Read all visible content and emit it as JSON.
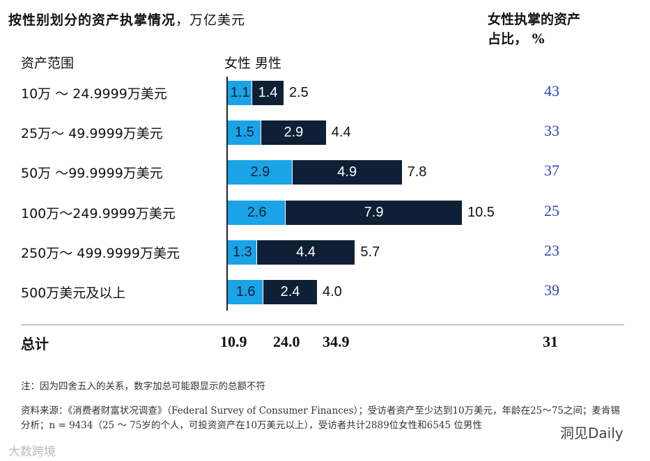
{
  "title": {
    "main": "按性别划分的资产执掌情况",
    "sub": "，万亿美元"
  },
  "share_header": {
    "line1": "女性执掌的资产",
    "line2": "占比， %"
  },
  "columns": {
    "range": "资产范围",
    "gender": "女性 男性"
  },
  "colors": {
    "female": "#1aa3e6",
    "male": "#0f1f36",
    "share": "#3045b8"
  },
  "chart_data": {
    "type": "bar",
    "orientation": "horizontal",
    "stacked": true,
    "title": "按性别划分的资产执掌情况，万亿美元",
    "categories": [
      "10万 ～ 24.9999万美元",
      "25万～ 49.9999万美元",
      "50万 ～99.9999万美元",
      "100万～249.9999万美元",
      "250万～ 499.9999万美元",
      "500万美元及以上"
    ],
    "series": [
      {
        "name": "女性",
        "values": [
          1.1,
          1.5,
          2.9,
          2.6,
          1.3,
          1.6
        ],
        "labels": [
          "1.1",
          "1.5",
          "2.9",
          "2.6",
          "1.3",
          "1.6"
        ]
      },
      {
        "name": "男性",
        "values": [
          1.4,
          2.9,
          4.9,
          7.9,
          4.4,
          2.4
        ],
        "labels": [
          "1.4",
          "2.9",
          "4.9",
          "7.9",
          "4.4",
          "2.4"
        ]
      }
    ],
    "totals": [
      "2.5",
      "4.4",
      "7.8",
      "10.5",
      "5.7",
      "4.0"
    ],
    "female_share_pct": [
      "43",
      "33",
      "37",
      "25",
      "23",
      "39"
    ],
    "xlim": [
      0,
      10.5
    ]
  },
  "total": {
    "label": "总计",
    "female": "10.9",
    "male": "24.0",
    "all": "34.9",
    "share": "31"
  },
  "note": "注：因为四舍五入的关系，数字加总可能跟显示的总额不符",
  "source": "资料来源：《消费者财富状况调查》（Federal Survey of Consumer Finances）；受访者资产至少达到10万美元，年龄在25～75之间；麦肯锡分析；n = 9434（25 ～ 75岁的个人，可投资资产在10万美元以上），受访者共计2889位女性和6545 位男性",
  "watermarks": {
    "left": "大数跨境",
    "right": "洞见Daily"
  }
}
